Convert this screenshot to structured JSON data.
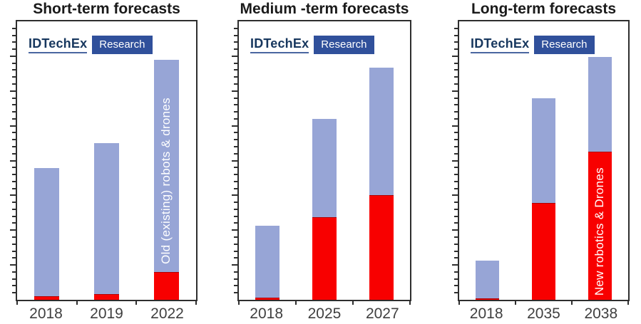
{
  "figure": {
    "background": "#ffffff"
  },
  "colors": {
    "old_series": "#97a5d6",
    "new_series": "#f80000",
    "axis": "#2e2e2e",
    "tick_label": "#3f3f3f",
    "title_text": "#1a1a1a",
    "logo_badge_bg": "#30509b",
    "logo_wordmark": "#17375e",
    "bar_label_text": "#ffffff"
  },
  "logo": {
    "brand": "IDTechEx",
    "badge": "Research"
  },
  "legend": {
    "old_label": "Old (existing) robots & drones",
    "new_label": "New robotics & Drones"
  },
  "chart_data": [
    {
      "type": "bar",
      "stacked": true,
      "title": "Short-term forecasts",
      "categories": [
        "2018",
        "2019",
        "2022"
      ],
      "xlabel": "",
      "ylabel": "",
      "y_axis": {
        "tick_labels_visible": false,
        "unit": "relative height, % of axis",
        "range": [
          0,
          100
        ]
      },
      "series": [
        {
          "name": "New robotics & Drones",
          "color": "#f80000",
          "values": [
            1.3,
            2.0,
            10.1
          ]
        },
        {
          "name": "Old (existing) robots & drones",
          "color": "#97a5d6",
          "values": [
            46.0,
            54.2,
            76.2
          ]
        }
      ],
      "bar_label": {
        "text": "Old (existing) robots & drones",
        "bar_index": 2,
        "segment": "old"
      }
    },
    {
      "type": "bar",
      "stacked": true,
      "title": "Medium -term forecasts",
      "categories": [
        "2018",
        "2025",
        "2027"
      ],
      "xlabel": "",
      "ylabel": "",
      "y_axis": {
        "tick_labels_visible": false,
        "unit": "relative height, % of axis",
        "range": [
          0,
          100
        ]
      },
      "series": [
        {
          "name": "New robotics & Drones",
          "color": "#f80000",
          "values": [
            0.8,
            29.7,
            37.6
          ]
        },
        {
          "name": "Old (existing) robots & drones",
          "color": "#97a5d6",
          "values": [
            25.8,
            35.3,
            45.9
          ]
        }
      ],
      "bar_label": null
    },
    {
      "type": "bar",
      "stacked": true,
      "title": "Long-term forecasts",
      "categories": [
        "2018",
        "2035",
        "2038"
      ],
      "xlabel": "",
      "ylabel": "",
      "y_axis": {
        "tick_labels_visible": false,
        "unit": "relative height, % of axis",
        "range": [
          0,
          100
        ]
      },
      "series": [
        {
          "name": "New robotics & Drones",
          "color": "#f80000",
          "values": [
            0.5,
            34.9,
            53.2
          ]
        },
        {
          "name": "Old (existing) robots & drones",
          "color": "#97a5d6",
          "values": [
            13.7,
            37.5,
            33.9
          ]
        }
      ],
      "bar_label": {
        "text": "New robotics & Drones",
        "bar_index": 2,
        "segment": "new"
      }
    }
  ]
}
